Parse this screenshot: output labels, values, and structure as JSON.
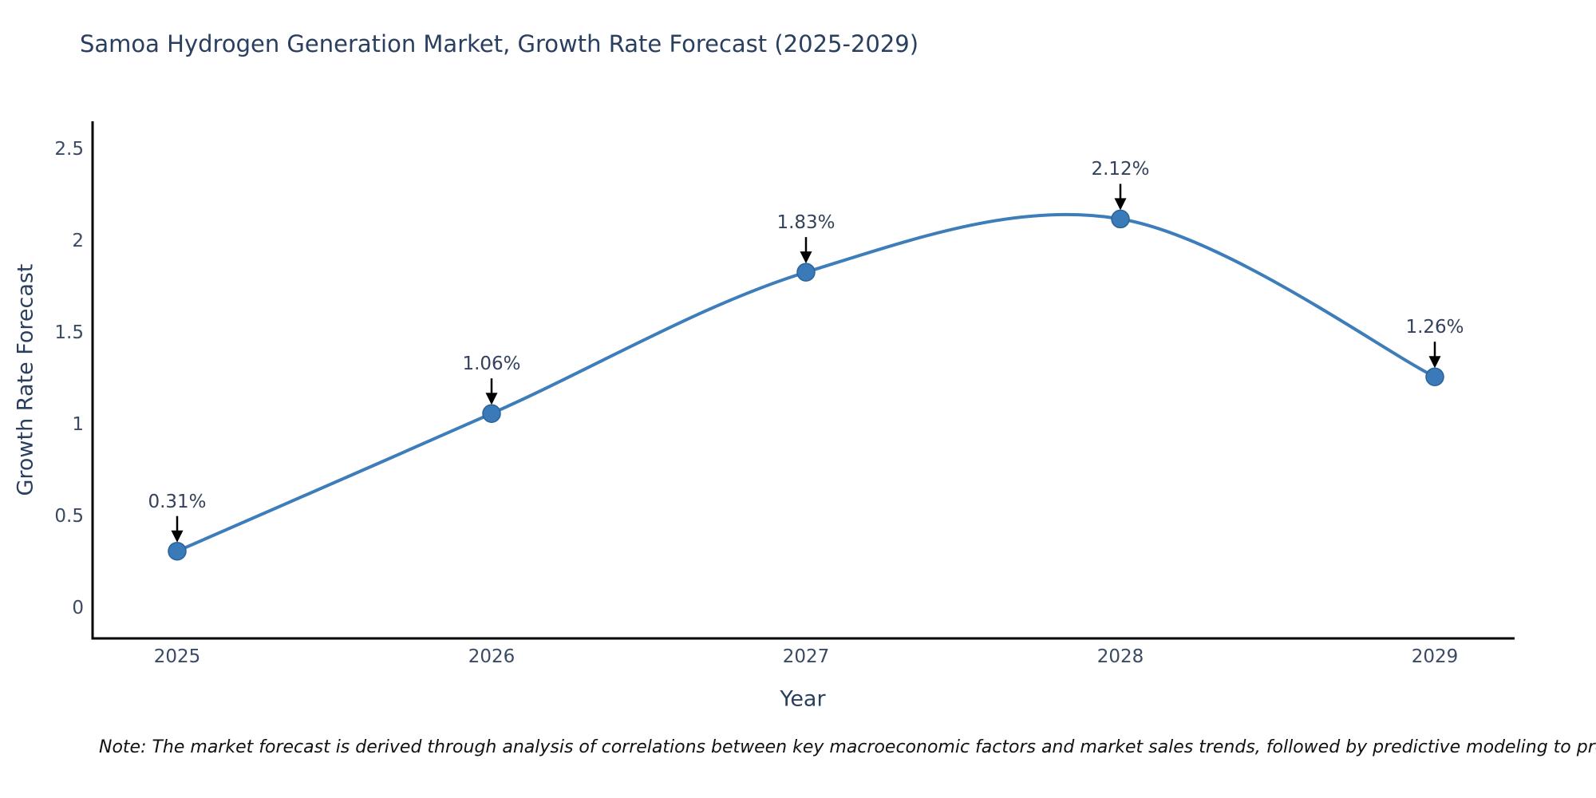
{
  "title": "Samoa Hydrogen Generation Market, Growth Rate Forecast (2025-2029)",
  "note": "Note: The market forecast is derived through analysis of correlations between key macroeconomic factors and market sales trends, followed by predictive modeling to project future sales",
  "chart_data": {
    "type": "line",
    "title": "Samoa Hydrogen Generation Market, Growth Rate Forecast (2025-2029)",
    "x": [
      2025,
      2026,
      2027,
      2028,
      2029
    ],
    "y": [
      0.31,
      1.06,
      1.83,
      2.12,
      1.26
    ],
    "labels": [
      "0.31%",
      "1.06%",
      "1.83%",
      "2.12%",
      "1.26%"
    ],
    "xlabel": "Year",
    "ylabel": "Growth Rate Forecast",
    "xticklabels": [
      "2025",
      "2026",
      "2027",
      "2028",
      "2029"
    ],
    "yticks": [
      0,
      0.5,
      1,
      1.5,
      2,
      2.5
    ],
    "yticklabels": [
      "0",
      "0.5",
      "1",
      "1.5",
      "2",
      "2.5"
    ],
    "ylim": [
      -0.17,
      2.7
    ],
    "line_style": "spline",
    "grid": false,
    "legend": false,
    "annotations": "black arrows pointing down from each percentage label to its data point",
    "colors": {
      "line": "#3d7dba",
      "marker_fill": "#3a7ab8",
      "marker_edge": "#2a6398",
      "arrow": "#000000",
      "axis": "#000000",
      "text": "#2a3f5f"
    }
  }
}
